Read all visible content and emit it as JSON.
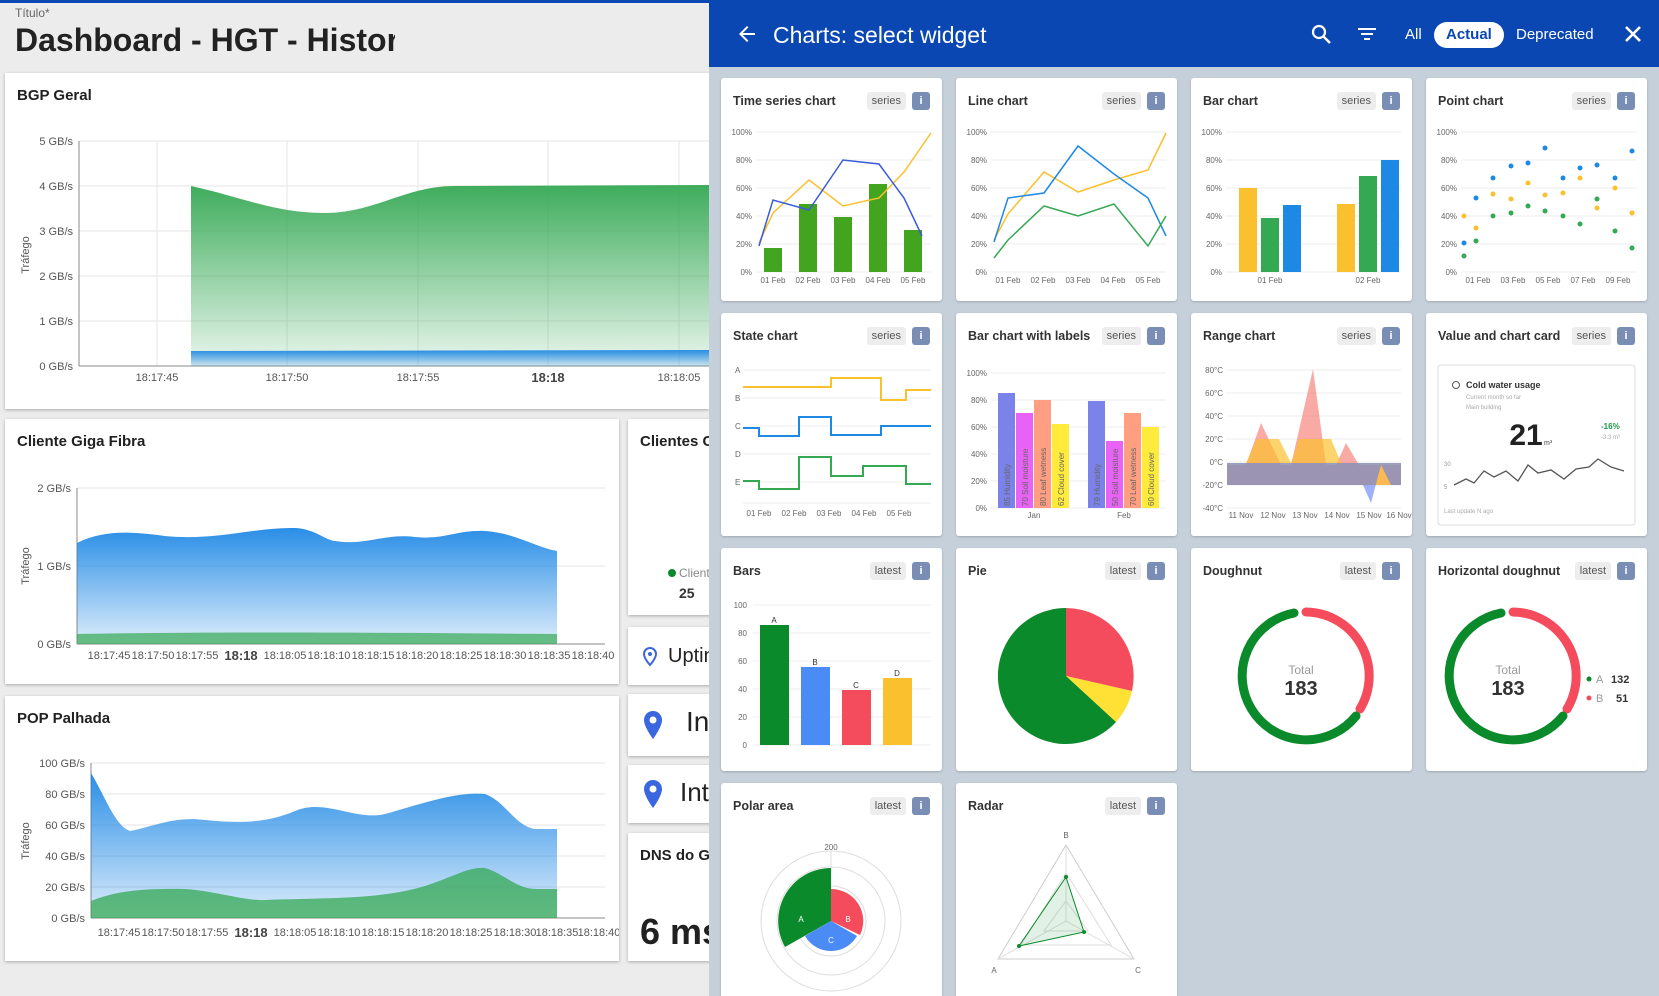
{
  "dashboard": {
    "title_label": "Título*",
    "title": "Dashboard - HGT - Histori",
    "bgp": {
      "title": "BGP Geral",
      "ylabel": "Tráfego",
      "yticks": [
        "5 GB/s",
        "4 GB/s",
        "3 GB/s",
        "2 GB/s",
        "1 GB/s",
        "0 GB/s"
      ],
      "xticks": [
        "18:17:45",
        "18:17:50",
        "18:17:55",
        "18:18",
        "18:18:05"
      ]
    },
    "cliente": {
      "title": "Cliente Giga Fibra",
      "ylabel": "Tráfego",
      "yticks": [
        "2 GB/s",
        "1 GB/s",
        "0 GB/s"
      ],
      "xticks": [
        "18:17:45",
        "18:17:50",
        "18:17:55",
        "18:18",
        "18:18:05",
        "18:18:10",
        "18:18:15",
        "18:18:20",
        "18:18:25",
        "18:18:30",
        "18:18:35",
        "18:18:40"
      ]
    },
    "pop": {
      "title": "POP Palhada",
      "ylabel": "Tráfego",
      "yticks": [
        "100 GB/s",
        "80 GB/s",
        "60 GB/s",
        "40 GB/s",
        "20 GB/s",
        "0 GB/s"
      ],
      "xticks": [
        "18:17:45",
        "18:17:50",
        "18:17:55",
        "18:18",
        "18:18:05",
        "18:18:10",
        "18:18:15",
        "18:18:20",
        "18:18:25",
        "18:18:30",
        "18:18:35",
        "18:18:40"
      ]
    },
    "clientes_card": {
      "title": "Clientes C",
      "legend": "Client",
      "value": "25"
    },
    "uptime_card": {
      "label": "Uptin"
    },
    "in1_card": {
      "label": "In"
    },
    "int_card": {
      "label": "Int"
    },
    "dns_card": {
      "title": "DNS do G",
      "value": "6 ms"
    }
  },
  "overlay": {
    "title": "Charts: select widget",
    "filters": {
      "all": "All",
      "actual": "Actual",
      "deprecated": "Deprecated"
    },
    "widgets": [
      {
        "title": "Time series chart",
        "badge": "series"
      },
      {
        "title": "Line chart",
        "badge": "series"
      },
      {
        "title": "Bar chart",
        "badge": "series"
      },
      {
        "title": "Point chart",
        "badge": "series"
      },
      {
        "title": "State chart",
        "badge": "series"
      },
      {
        "title": "Bar chart with labels",
        "badge": "series"
      },
      {
        "title": "Range chart",
        "badge": "series"
      },
      {
        "title": "Value and chart card",
        "badge": "series"
      },
      {
        "title": "Bars",
        "badge": "latest"
      },
      {
        "title": "Pie",
        "badge": "latest"
      },
      {
        "title": "Doughnut",
        "badge": "latest"
      },
      {
        "title": "Horizontal doughnut",
        "badge": "latest"
      },
      {
        "title": "Polar area",
        "badge": "latest"
      },
      {
        "title": "Radar",
        "badge": "latest"
      }
    ],
    "info_label": "i",
    "pct_ticks": [
      "100%",
      "80%",
      "60%",
      "40%",
      "20%",
      "0%"
    ],
    "date_ticks": [
      "01 Feb",
      "02 Feb",
      "03 Feb",
      "04 Feb",
      "05 Feb"
    ],
    "bar_ticks": [
      "01 Feb",
      "02 Feb"
    ],
    "point_ticks": [
      "01 Feb",
      "03 Feb",
      "05 Feb",
      "07 Feb",
      "09 Feb"
    ],
    "state_ticks": [
      "A",
      "B",
      "C",
      "D",
      "E"
    ],
    "label_bars": {
      "jan": [
        "85 Humidity",
        "70 Soil moisture",
        "80 Leaf wetness",
        "62 Cloud cover"
      ],
      "feb": [
        "79 Humidity",
        "50 Soil moisture",
        "70 Leaf wetness",
        "60 Cloud cover"
      ],
      "months": [
        "Jan",
        "Feb"
      ]
    },
    "range_ticks": [
      "80°C",
      "60°C",
      "40°C",
      "20°C",
      "0°C",
      "-20°C",
      "-40°C"
    ],
    "range_x": [
      "11 Nov",
      "12 Nov",
      "13 Nov",
      "14 Nov",
      "15 Nov",
      "16 Nov"
    ],
    "value_card": {
      "title": "Cold water usage",
      "subtitle": "Current month so far",
      "location": "Main building",
      "value": "21",
      "unit": "m³",
      "delta": "-16%",
      "delta_abs": "-3.3 m³",
      "y_hi": "30",
      "y_lo": "5",
      "footer": "Last update N ago"
    },
    "bars_ticks": [
      "100",
      "80",
      "60",
      "40",
      "20",
      "0"
    ],
    "bars_labels": [
      "A",
      "B",
      "C",
      "D"
    ],
    "doughnut": {
      "total_label": "Total",
      "total": "183"
    },
    "hdoughnut": {
      "total_label": "Total",
      "total": "183",
      "legend": [
        {
          "name": "A",
          "value": "132"
        },
        {
          "name": "B",
          "value": "51"
        }
      ]
    },
    "polar": {
      "tick": "200",
      "labels": [
        "A",
        "B",
        "C"
      ]
    },
    "radar": {
      "labels": [
        "B",
        "A",
        "C"
      ]
    },
    "colors": {
      "primary": "#0a47b3",
      "green": "#0b8a2b",
      "blue": "#1e88e5",
      "red": "#f44c5c",
      "yellow": "#fbc02d"
    }
  }
}
